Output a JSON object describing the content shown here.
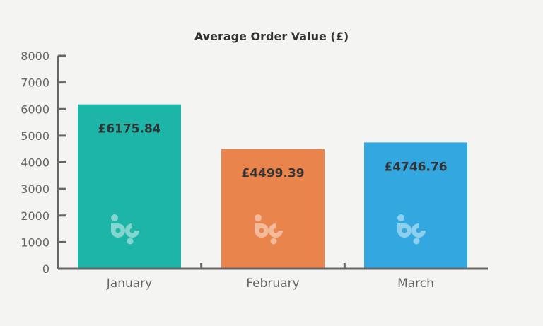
{
  "chart_data": {
    "type": "bar",
    "title": "Average Order Value (£)",
    "xlabel": "",
    "ylabel": "",
    "categories": [
      "January",
      "February",
      "March"
    ],
    "values": [
      6175.84,
      4499.39,
      4746.76
    ],
    "data_labels": [
      "£6175.84",
      "£4499.39",
      "£4746.76"
    ],
    "colors": [
      "#1db5a8",
      "#e8844c",
      "#33a8e0"
    ],
    "ylim": [
      0,
      8000
    ],
    "yticks": [
      0,
      1000,
      2000,
      3000,
      4000,
      5000,
      6000,
      7000,
      8000
    ],
    "grid": false,
    "watermark": "bp"
  }
}
